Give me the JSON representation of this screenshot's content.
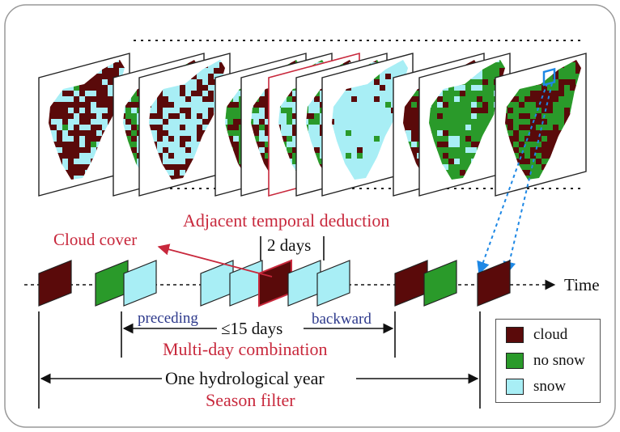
{
  "labels": {
    "adjacent": "Adjacent temporal deduction",
    "cloud_cover": "Cloud cover",
    "two_days": "2 days",
    "time": "Time",
    "preceding": "preceding",
    "backward": "backward",
    "fifteen": "≤15 days",
    "multiday": "Multi-day combination",
    "hydro_year": "One hydrological year",
    "season": "Season filter"
  },
  "legend": [
    {
      "label": "cloud",
      "color": "#5a0a0a"
    },
    {
      "label": "no snow",
      "color": "#2a9a2a"
    },
    {
      "label": "snow",
      "color": "#a8eef5"
    }
  ],
  "colors": {
    "cloud": "#5a0a0a",
    "no_snow": "#2a9a2a",
    "snow": "#a8eef5",
    "accent_red": "#c8283c",
    "accent_blue": "#2e3a8c",
    "pixel_marker": "#1e88e5"
  },
  "icons": [
    "arrow-right-icon",
    "dotted-arrow-icon",
    "double-arrow-icon"
  ]
}
